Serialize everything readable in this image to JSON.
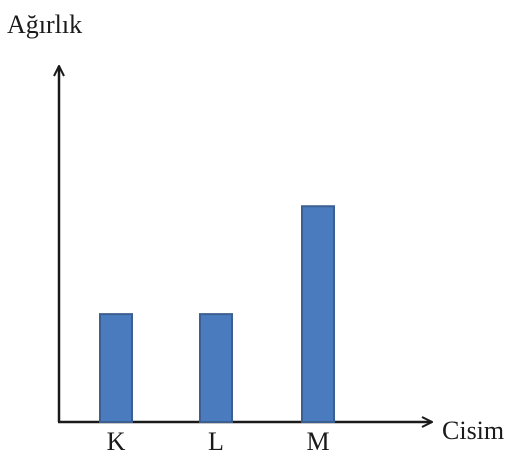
{
  "chart_data": {
    "type": "bar",
    "title": "",
    "xlabel": "Cisim",
    "ylabel": "Ağırlık",
    "categories": [
      "K",
      "L",
      "M"
    ],
    "values": [
      1,
      1,
      2
    ],
    "ylim": [
      0,
      3.3
    ],
    "grid": false,
    "legend": "none",
    "bar_color": "#4a7bbf",
    "bar_edge_color": "#3a5f90",
    "axis_color": "#1a1a1a"
  }
}
